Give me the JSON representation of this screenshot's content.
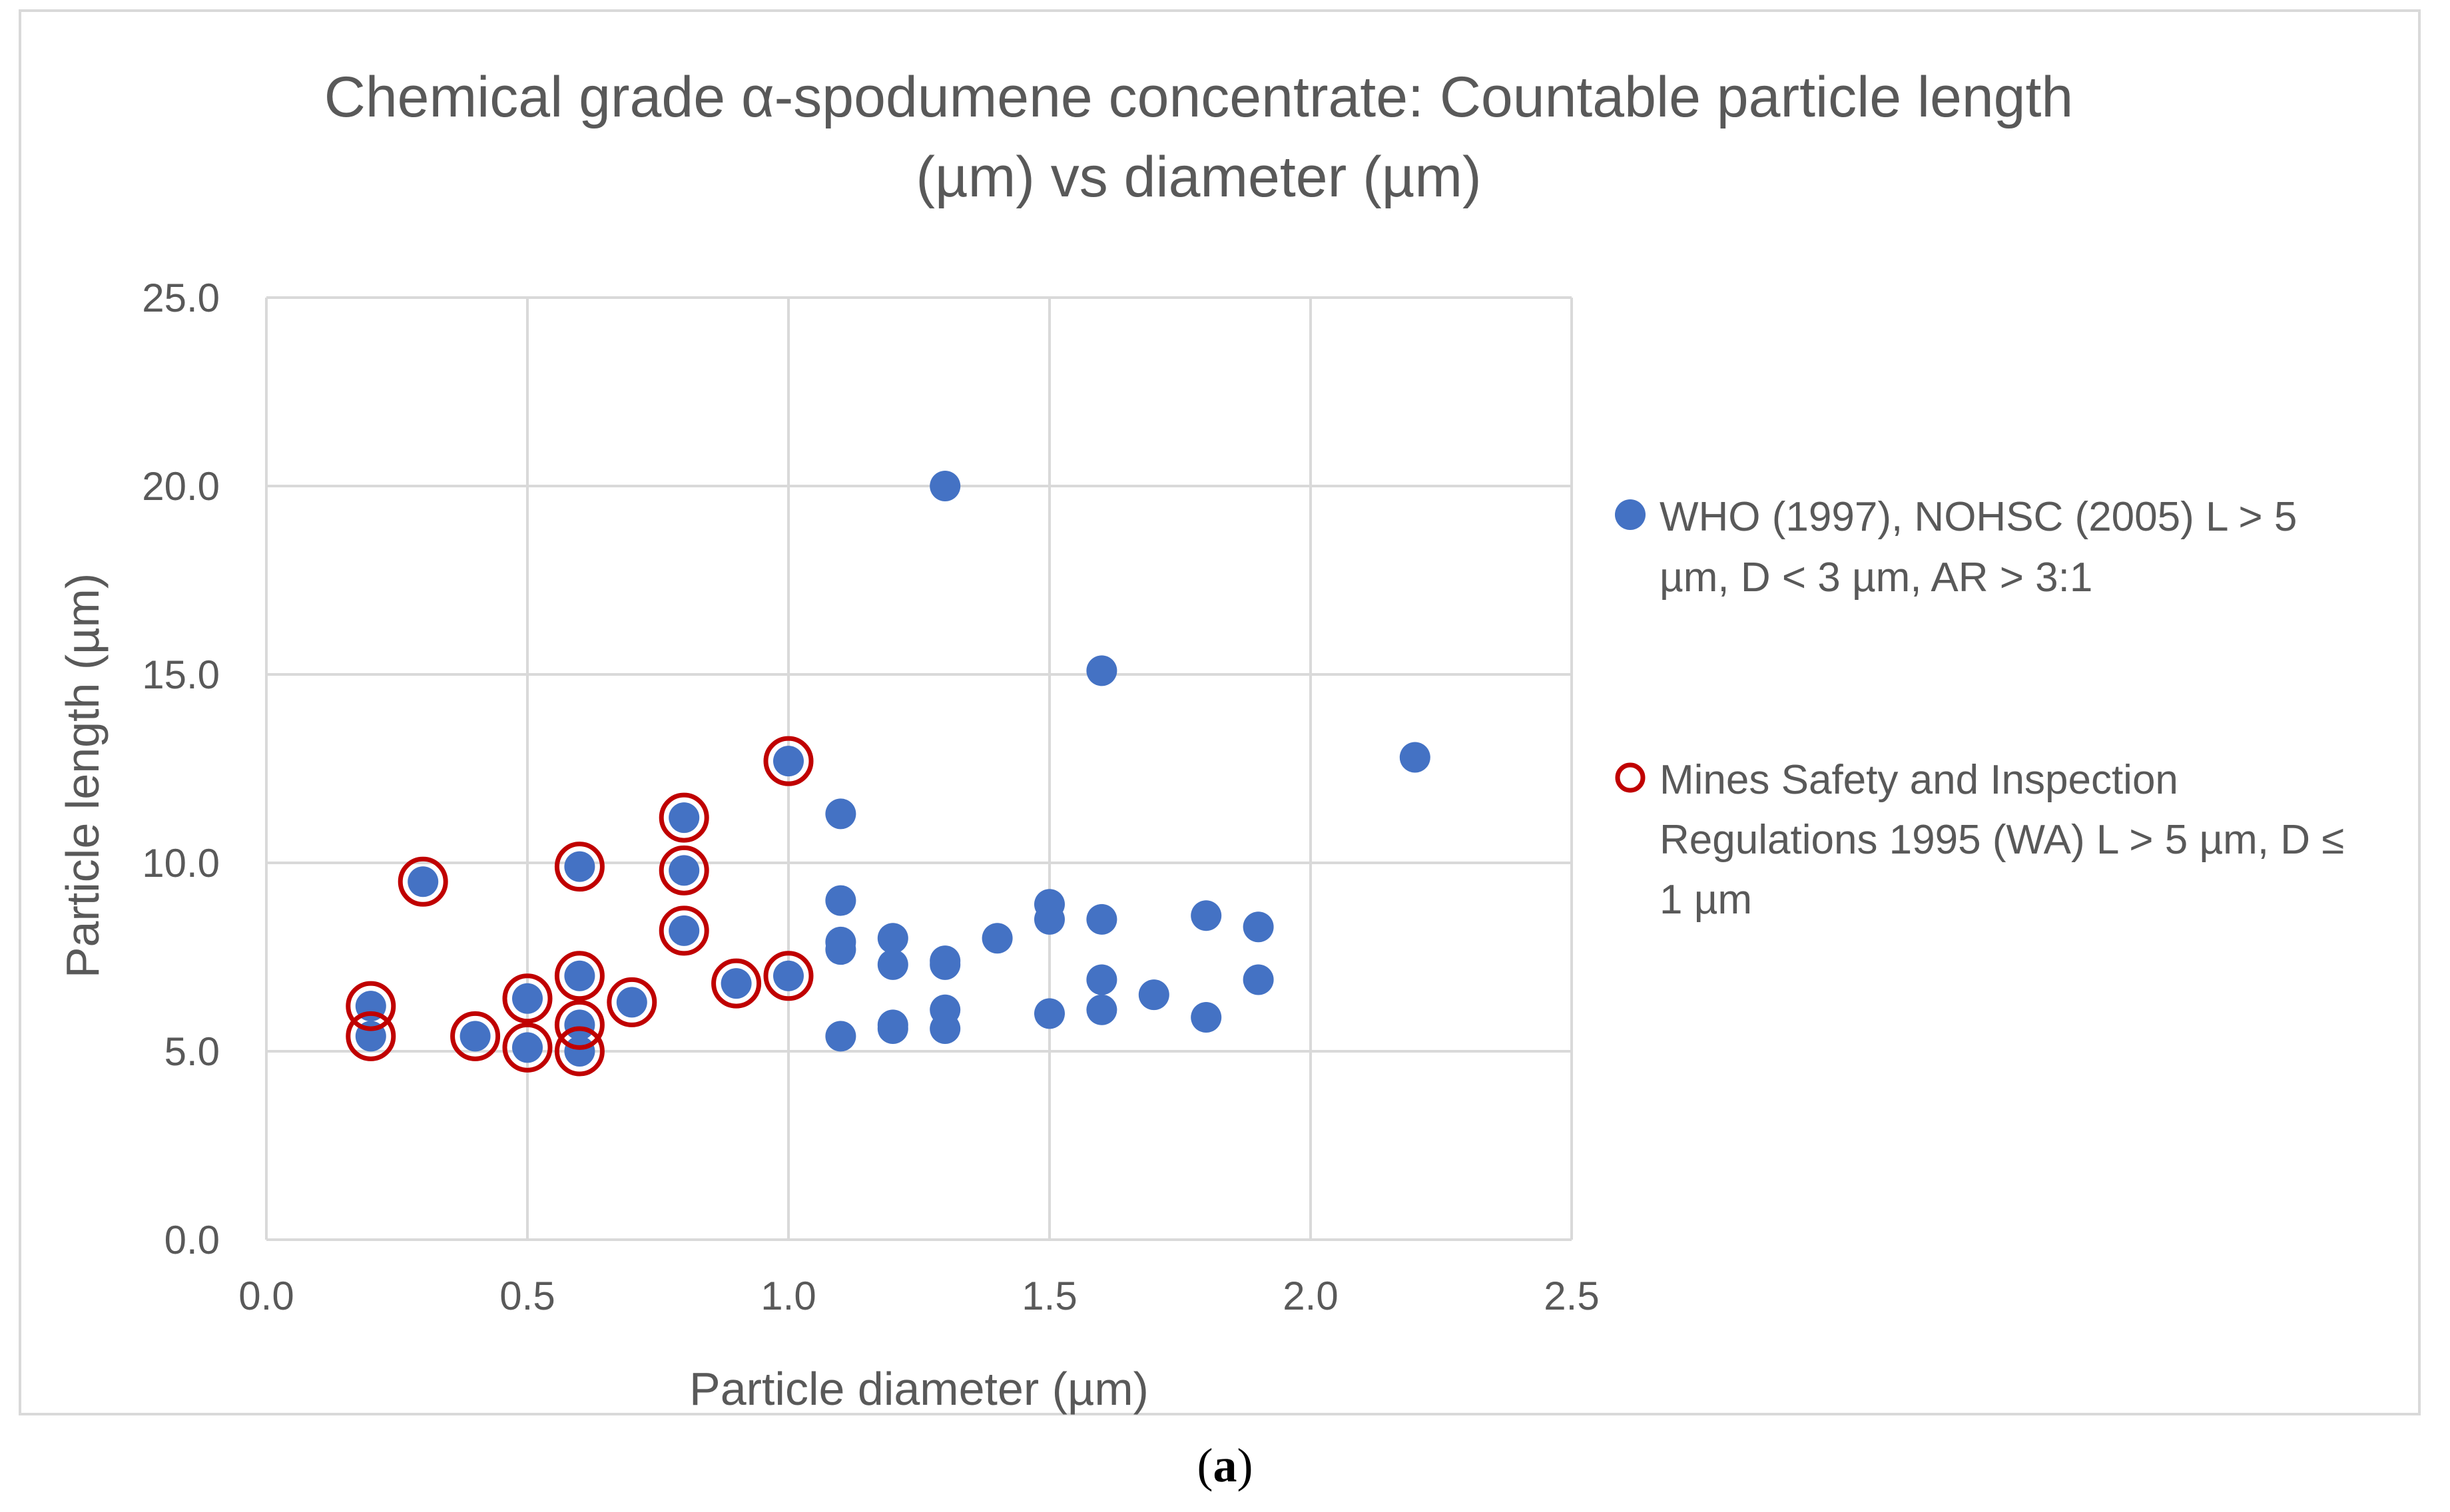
{
  "chart_data": {
    "type": "scatter",
    "title_lines": [
      "Chemical grade α-spodumene concentrate: Countable particle length",
      "(µm) vs diameter (µm)"
    ],
    "xlabel": "Particle diameter (µm)",
    "ylabel": "Particle length (µm)",
    "xlim": [
      0,
      2.5
    ],
    "ylim": [
      0,
      25
    ],
    "x_ticks": [
      "0.0",
      "0.5",
      "1.0",
      "1.5",
      "2.0",
      "2.5"
    ],
    "y_ticks": [
      "0.0",
      "5.0",
      "10.0",
      "15.0",
      "20.0",
      "25.0"
    ],
    "x_tick_values": [
      0,
      0.5,
      1.0,
      1.5,
      2.0,
      2.5
    ],
    "y_tick_values": [
      0,
      5,
      10,
      15,
      20,
      25
    ],
    "grid": true,
    "legend_position": "right",
    "series": [
      {
        "name_lines": [
          "WHO (1997), NOHSC (2005) L > 5",
          "µm, D < 3 µm, AR > 3:1"
        ],
        "marker": "filled-circle",
        "color": "#4472c4",
        "points": [
          [
            0.2,
            6.2
          ],
          [
            0.2,
            5.4
          ],
          [
            0.3,
            9.5
          ],
          [
            0.4,
            5.4
          ],
          [
            0.5,
            6.4
          ],
          [
            0.5,
            5.1
          ],
          [
            0.6,
            9.9
          ],
          [
            0.6,
            7.0
          ],
          [
            0.6,
            5.7
          ],
          [
            0.6,
            5.0
          ],
          [
            0.7,
            6.3
          ],
          [
            0.8,
            11.2
          ],
          [
            0.8,
            9.8
          ],
          [
            0.8,
            8.2
          ],
          [
            0.9,
            6.8
          ],
          [
            1.0,
            12.7
          ],
          [
            1.0,
            7.0
          ],
          [
            1.1,
            11.3
          ],
          [
            1.1,
            9.0
          ],
          [
            1.1,
            7.9
          ],
          [
            1.1,
            7.7
          ],
          [
            1.1,
            5.4
          ],
          [
            1.2,
            8.0
          ],
          [
            1.2,
            7.3
          ],
          [
            1.2,
            5.7
          ],
          [
            1.2,
            5.6
          ],
          [
            1.3,
            20.0
          ],
          [
            1.3,
            7.4
          ],
          [
            1.3,
            7.3
          ],
          [
            1.3,
            6.1
          ],
          [
            1.3,
            5.6
          ],
          [
            1.4,
            8.0
          ],
          [
            1.5,
            8.9
          ],
          [
            1.5,
            8.5
          ],
          [
            1.5,
            6.0
          ],
          [
            1.6,
            15.1
          ],
          [
            1.6,
            8.5
          ],
          [
            1.6,
            6.9
          ],
          [
            1.6,
            6.1
          ],
          [
            1.7,
            6.5
          ],
          [
            1.8,
            8.6
          ],
          [
            1.8,
            5.9
          ],
          [
            1.9,
            8.3
          ],
          [
            1.9,
            6.9
          ],
          [
            2.2,
            12.8
          ]
        ]
      },
      {
        "name_lines": [
          "Mines Safety and Inspection",
          "Regulations 1995 (WA) L > 5 µm, D ≤",
          "1 µm"
        ],
        "marker": "open-circle",
        "color": "#c00000",
        "points": [
          [
            0.2,
            6.2
          ],
          [
            0.2,
            5.4
          ],
          [
            0.3,
            9.5
          ],
          [
            0.4,
            5.4
          ],
          [
            0.5,
            6.4
          ],
          [
            0.5,
            5.1
          ],
          [
            0.6,
            9.9
          ],
          [
            0.6,
            7.0
          ],
          [
            0.6,
            5.7
          ],
          [
            0.6,
            5.0
          ],
          [
            0.7,
            6.3
          ],
          [
            0.8,
            11.2
          ],
          [
            0.8,
            9.8
          ],
          [
            0.8,
            8.2
          ],
          [
            0.9,
            6.8
          ],
          [
            1.0,
            12.7
          ],
          [
            1.0,
            7.0
          ]
        ]
      }
    ]
  },
  "caption": {
    "open": "(",
    "label": "a",
    "close": ")"
  },
  "colors": {
    "grid": "#d9d9d9",
    "text": "#595959"
  }
}
